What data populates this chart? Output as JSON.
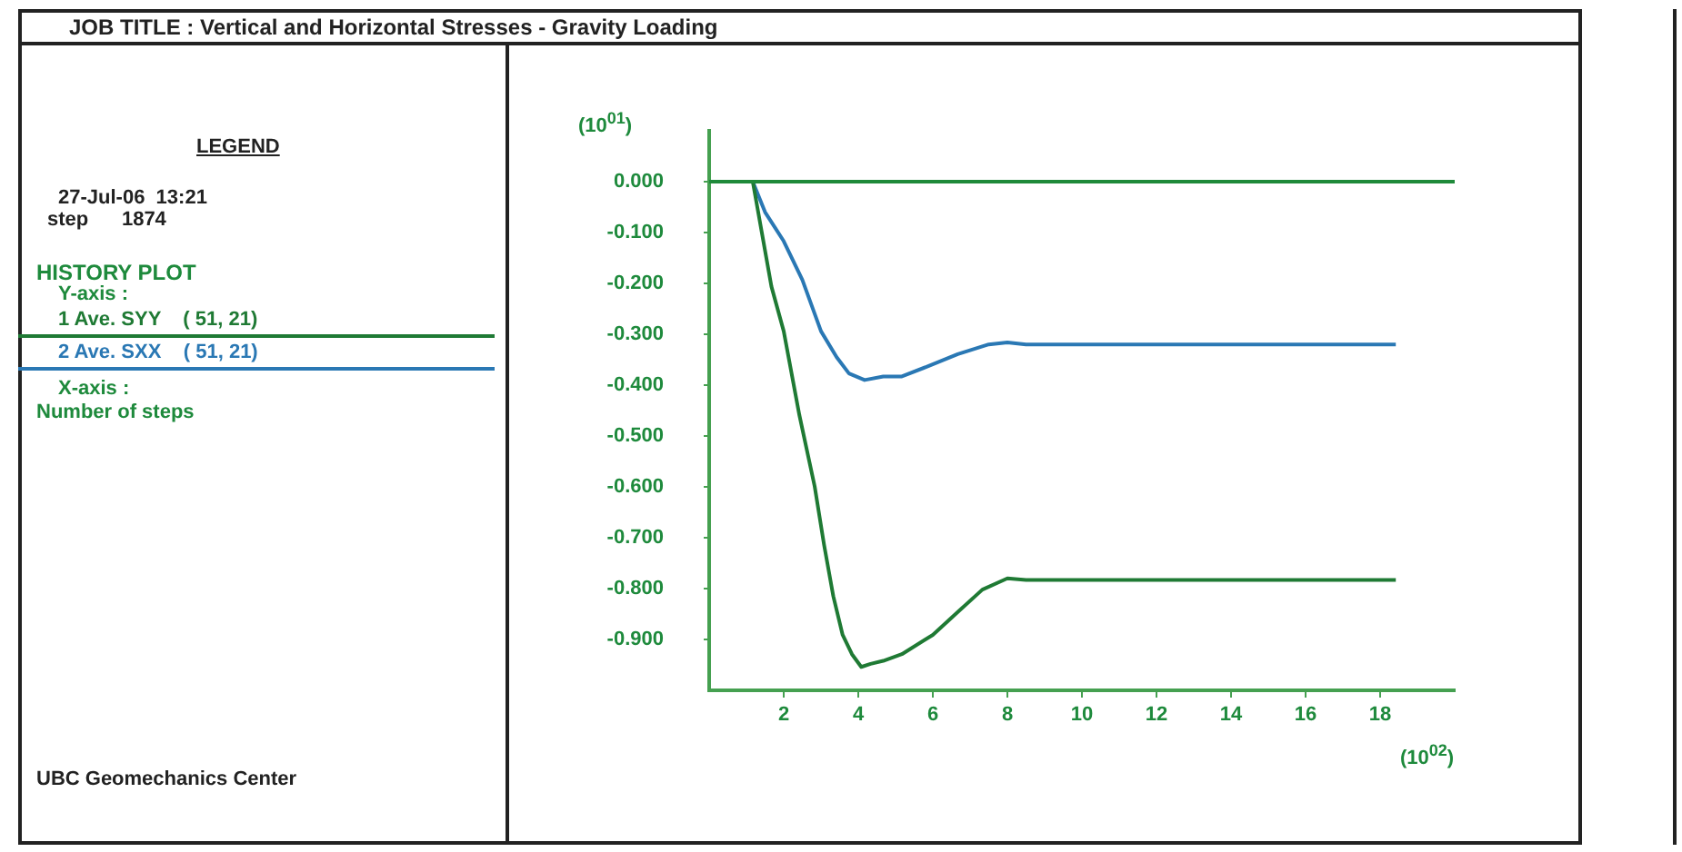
{
  "chart_data": {
    "type": "line",
    "title": "JOB TITLE : Vertical and Horizontal Stresses - Gravity Loading",
    "xlabel": "(10$^{02}$)",
    "ylabel": "(10$^{01}$)",
    "annotations": [
      "LEGEND",
      "27-Jul-06  13:21",
      "step      1874",
      "HISTORY PLOT",
      "Y-axis :",
      "X-axis :",
      "Number of steps",
      "UBC Geomechanics Center"
    ],
    "xlim": [
      0,
      20
    ],
    "xticks": [
      2,
      4,
      6,
      8,
      10,
      12,
      14,
      16,
      18
    ],
    "ylim": [
      -1.0,
      0.1
    ],
    "yticks": [
      {
        "value": 0,
        "label": "0.000"
      },
      {
        "value": -0.1,
        "label": "-0.100"
      },
      {
        "value": -0.2,
        "label": "-0.200"
      },
      {
        "value": -0.3,
        "label": "-0.300"
      },
      {
        "value": -0.4,
        "label": "-0.400"
      },
      {
        "value": -0.5,
        "label": "-0.500"
      },
      {
        "value": -0.6,
        "label": "-0.600"
      },
      {
        "value": -0.7,
        "label": "-0.700"
      },
      {
        "value": -0.8,
        "label": "-0.800"
      },
      {
        "value": -0.9,
        "label": "-0.900"
      }
    ],
    "grid": false,
    "legend": "left",
    "marker": "none",
    "line_style": "solid",
    "ref_lines": [
      {
        "axis": "y",
        "value": 0,
        "color": "#1f8a3a"
      }
    ],
    "series": [
      {
        "name": "1 Ave. SYY    ( 51, 21)",
        "color": "#1f7a34",
        "x": [
          0,
          1.17,
          1.67,
          2,
          2.42,
          2.83,
          3.08,
          3.33,
          3.58,
          3.83,
          4.08,
          4.33,
          4.67,
          5.17,
          6,
          6.67,
          7.33,
          8,
          8.5,
          18.42
        ],
        "values": [
          0,
          0,
          -0.206,
          -0.294,
          -0.459,
          -0.599,
          -0.713,
          -0.815,
          -0.891,
          -0.929,
          -0.954,
          -0.948,
          -0.942,
          -0.929,
          -0.891,
          -0.846,
          -0.802,
          -0.78,
          -0.783,
          -0.783
        ]
      },
      {
        "name": "2 Ave. SXX    ( 51, 21)",
        "color": "#2a78b4",
        "x": [
          0,
          1.17,
          1.5,
          2,
          2.5,
          3,
          3.42,
          3.75,
          4.17,
          4.67,
          5.17,
          5.83,
          6.67,
          7.5,
          8,
          8.5,
          18.42
        ],
        "values": [
          0,
          0,
          -0.06,
          -0.117,
          -0.193,
          -0.294,
          -0.345,
          -0.377,
          -0.39,
          -0.383,
          -0.383,
          -0.364,
          -0.339,
          -0.32,
          -0.316,
          -0.32,
          -0.32
        ]
      }
    ]
  }
}
